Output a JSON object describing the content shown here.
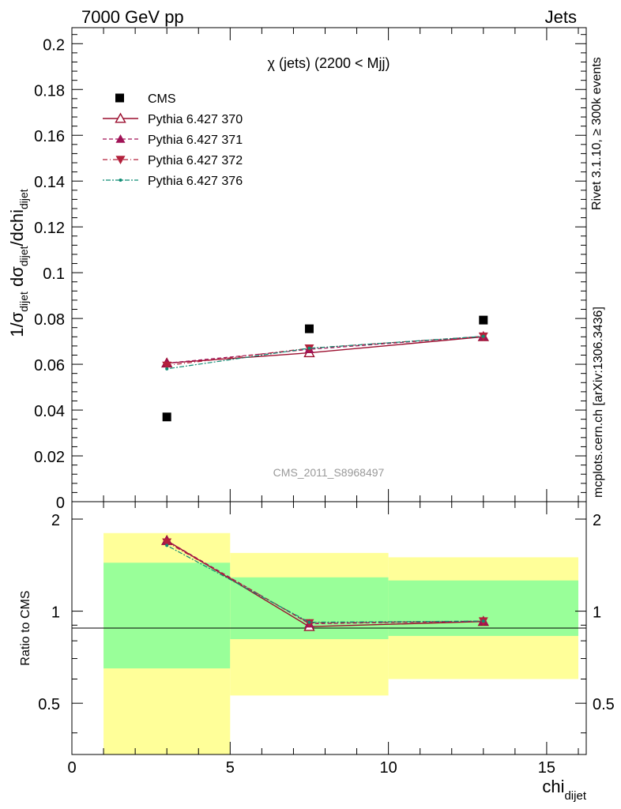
{
  "header": {
    "left": "7000 GeV pp",
    "right": "Jets"
  },
  "side_labels": {
    "rivet": "Rivet 3.1.10, ≥ 300k events",
    "mcplots": "mcplots.cern.ch [arXiv:1306.3436]"
  },
  "watermark": "CMS_2011_S8968497",
  "colors": {
    "cms": "#000000",
    "p370": "#9b0e2e",
    "p371": "#a01256",
    "p372": "#b3213c",
    "p376": "#0f8c73",
    "band_outer": "#ffff99",
    "band_inner": "#99ff99"
  },
  "chart_data": [
    {
      "type": "scatter",
      "panel": "main",
      "title": "χ (jets) (2200 < Mjj)",
      "ylabel": "1/σ_dijet dσ_dijet/dchi_dijet",
      "xlim": [
        0,
        16.25
      ],
      "ylim": [
        0,
        0.207
      ],
      "yticks": [
        0,
        0.02,
        0.04,
        0.06,
        0.08,
        0.1,
        0.12,
        0.14,
        0.16,
        0.18,
        0.2
      ],
      "yticklabels": [
        "0",
        "0.02",
        "0.04",
        "0.06",
        "0.08",
        "0.1",
        "0.12",
        "0.14",
        "0.16",
        "0.18",
        "0.2"
      ],
      "legend_position": "top-left",
      "x": [
        3,
        7.5,
        13
      ],
      "series": [
        {
          "name": "CMS",
          "values": [
            0.037,
            0.0755,
            0.0793
          ]
        },
        {
          "name": "Pythia 6.427 370",
          "values": [
            0.0605,
            0.065,
            0.072
          ]
        },
        {
          "name": "Pythia 6.427 371",
          "values": [
            0.0605,
            0.0665,
            0.0722
          ]
        },
        {
          "name": "Pythia 6.427 372",
          "values": [
            0.0595,
            0.067,
            0.0722
          ]
        },
        {
          "name": "Pythia 6.427 376",
          "values": [
            0.058,
            0.067,
            0.0722
          ]
        }
      ]
    },
    {
      "type": "line",
      "panel": "ratio",
      "xlabel": "chi_dijet",
      "ylabel": "Ratio to CMS",
      "xlim": [
        0,
        16.25
      ],
      "ylim": [
        0.34,
        2.28
      ],
      "log_y": true,
      "yticklabels": [
        "0.5",
        "1",
        "2"
      ],
      "xticklabels": [
        "0",
        "5",
        "10",
        "15"
      ],
      "bins": [
        [
          1,
          5
        ],
        [
          5,
          10
        ],
        [
          10,
          16
        ]
      ],
      "band_outer": [
        [
          0.34,
          1.8
        ],
        [
          0.53,
          1.55
        ],
        [
          0.6,
          1.5
        ]
      ],
      "band_inner": [
        [
          0.65,
          1.44
        ],
        [
          0.81,
          1.29
        ],
        [
          0.83,
          1.26
        ]
      ],
      "x": [
        3,
        7.5,
        13
      ],
      "series": [
        {
          "name": "Pythia 6.427 370",
          "values": [
            1.7,
            0.89,
            0.925
          ]
        },
        {
          "name": "Pythia 6.427 371",
          "values": [
            1.7,
            0.91,
            0.928
          ]
        },
        {
          "name": "Pythia 6.427 372",
          "values": [
            1.68,
            0.915,
            0.928
          ]
        },
        {
          "name": "Pythia 6.427 376",
          "values": [
            1.64,
            0.92,
            0.928
          ]
        }
      ]
    }
  ]
}
